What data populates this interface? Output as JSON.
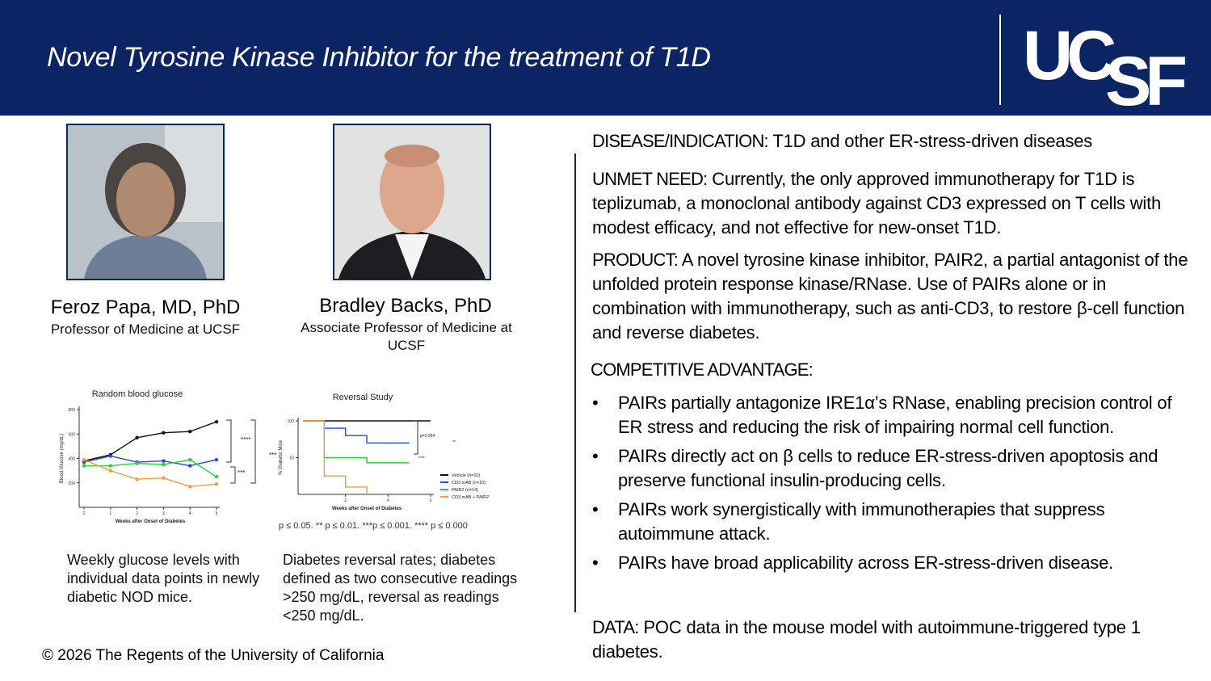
{
  "header": {
    "title": "Novel Tyrosine Kinase Inhibitor for the treatment of T1D",
    "logo_top": "UC",
    "logo_bottom": "SF"
  },
  "people": [
    {
      "name": "Feroz Papa, MD, PhD",
      "role": "Professor of Medicine at UCSF"
    },
    {
      "name": "Bradley Backs, PhD",
      "role": "Associate Professor of Medicine at UCSF"
    }
  ],
  "chart_data": [
    {
      "type": "line",
      "title": "Random blood glucose",
      "xlabel": "Weeks after Onset of Diabetes",
      "ylabel": "Blood Glucose (mg/dL)",
      "x": [
        0,
        1,
        2,
        3,
        4,
        5
      ],
      "xlim": [
        0,
        5
      ],
      "xticks": [
        0,
        1,
        2,
        3,
        4,
        5
      ],
      "ylim": [
        0,
        800
      ],
      "yticks": [
        200,
        400,
        600,
        800
      ],
      "series": [
        {
          "color": "#111111",
          "values": [
            380,
            430,
            570,
            610,
            620,
            700
          ]
        },
        {
          "color": "#1f4fd8",
          "values": [
            370,
            420,
            370,
            380,
            340,
            390
          ]
        },
        {
          "color": "#2ecc40",
          "values": [
            340,
            340,
            360,
            350,
            390,
            250
          ]
        },
        {
          "color": "#f0a030",
          "values": [
            390,
            300,
            230,
            240,
            170,
            190
          ]
        }
      ],
      "annotations": [
        "****",
        "***",
        "***"
      ]
    },
    {
      "type": "step",
      "title": "Reversal Study",
      "xlabel": "Weeks after Onset of Diabetes",
      "ylabel": "% Diabetic Mice",
      "xlim": [
        0,
        6
      ],
      "xticks": [
        2,
        4,
        6
      ],
      "ylim": [
        0,
        100
      ],
      "yticks": [
        50,
        100
      ],
      "series": [
        {
          "name": "Vehicle (n=10)",
          "color": "#111111",
          "x": [
            0,
            6
          ],
          "values": [
            100,
            100
          ]
        },
        {
          "name": "CD3 mAB (n=10)",
          "color": "#1f4fd8",
          "x": [
            0,
            1,
            2,
            3,
            5
          ],
          "values": [
            100,
            90,
            80,
            70,
            70
          ]
        },
        {
          "name": "PAIR2 (n=14)",
          "color": "#2ecc40",
          "x": [
            0,
            1,
            3,
            5
          ],
          "values": [
            100,
            50,
            43,
            43
          ]
        },
        {
          "name": "CD3 mAB + PAIR2",
          "color": "#f0a030",
          "x": [
            0,
            1,
            2,
            3
          ],
          "values": [
            100,
            25,
            10,
            0
          ]
        }
      ],
      "annotations": [
        "p=0.054",
        "**",
        "****"
      ],
      "footnote": "p ≤ 0.05. ** p ≤ 0.01. ***p ≤ 0.001. **** p ≤ 0.000"
    }
  ],
  "captions": [
    "Weekly glucose levels with individual data points in newly diabetic NOD mice.",
    "Diabetes reversal rates; diabetes defined as two consecutive readings >250 mg/dL, reversal as readings <250 mg/dL."
  ],
  "sections": [
    {
      "label": "DISEASE/INDICATION:",
      "text": "T1D and other ER-stress-driven diseases"
    },
    {
      "label": "UNMET NEED:",
      "text": "Currently, the only approved immunotherapy for T1D is teplizumab, a monoclonal antibody against CD3 expressed on T cells with modest efficacy, and not effective for new-onset T1D."
    },
    {
      "label": "PRODUCT:",
      "text": "A novel tyrosine kinase inhibitor, PAIR2, a partial antagonist of the unfolded protein response kinase/RNase. Use of PAIRs alone or in combination with immunotherapy, such as anti-CD3, to restore β-cell function and reverse diabetes."
    }
  ],
  "advantage": {
    "label": "COMPETITIVE ADVANTAGE:",
    "bullets": [
      "PAIRs partially antagonize IRE1α’s RNase, enabling precision control of ER stress and reducing the risk of impairing normal cell function.",
      "PAIRs directly act on β cells to reduce ER-stress-driven apoptosis and preserve functional insulin-producing cells.",
      "PAIRs work synergistically with immunotherapies that suppress autoimmune attack.",
      "PAIRs have broad applicability across ER-stress-driven disease."
    ]
  },
  "data_section": {
    "label": "DATA:",
    "text": "POC data in the mouse model with autoimmune-triggered type 1 diabetes."
  },
  "footer": "© 2026 The Regents of the University of California"
}
